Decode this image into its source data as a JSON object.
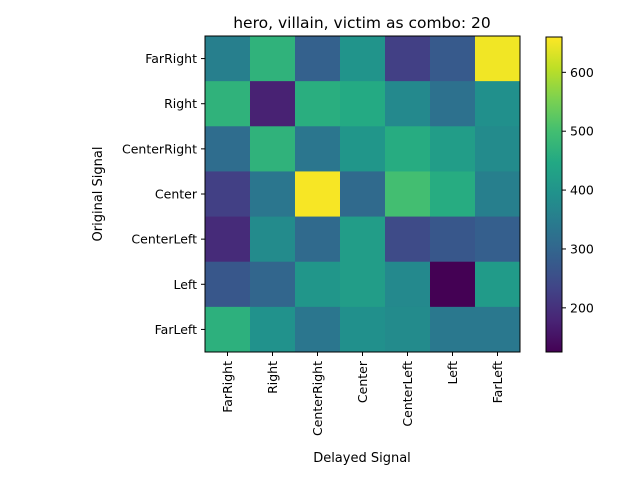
{
  "chart_data": {
    "type": "heatmap",
    "title": "hero, villain, victim as combo: 20",
    "xlabel": "Delayed Signal",
    "ylabel": "Original Signal",
    "x_categories": [
      "FarRight",
      "Right",
      "CenterRight",
      "Center",
      "CenterLeft",
      "Left",
      "FarLeft"
    ],
    "y_categories": [
      "FarRight",
      "Right",
      "CenterRight",
      "Center",
      "CenterLeft",
      "Left",
      "FarLeft"
    ],
    "values": [
      [
        355,
        470,
        290,
        400,
        225,
        275,
        650
      ],
      [
        470,
        175,
        460,
        450,
        375,
        325,
        390
      ],
      [
        315,
        470,
        335,
        405,
        455,
        420,
        380
      ],
      [
        225,
        335,
        655,
        310,
        500,
        455,
        355
      ],
      [
        190,
        380,
        310,
        420,
        245,
        270,
        285
      ],
      [
        270,
        300,
        405,
        420,
        375,
        125,
        415
      ],
      [
        465,
        395,
        335,
        390,
        380,
        340,
        340
      ]
    ],
    "colorbar": {
      "min": 125,
      "max": 660,
      "ticks": [
        200,
        300,
        400,
        500,
        600
      ],
      "colormap": "viridis"
    }
  }
}
